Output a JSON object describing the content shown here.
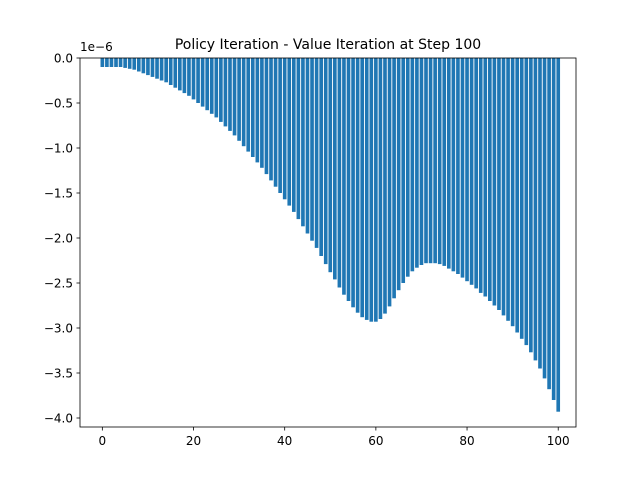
{
  "chart_data": {
    "type": "bar",
    "title": "Policy Iteration - Value Iteration at Step 100",
    "xlabel": "",
    "ylabel": "",
    "offset_label": "1e−6",
    "y_scale_exponent": -6,
    "bar_color": "#1f77b4",
    "grid": false,
    "xlim": [
      -4.9,
      103.9
    ],
    "ylim": [
      -4.1,
      0.0
    ],
    "xticks": [
      0,
      20,
      40,
      60,
      80,
      100
    ],
    "xtick_labels": [
      "0",
      "20",
      "40",
      "60",
      "80",
      "100"
    ],
    "yticks": [
      0.0,
      -0.5,
      -1.0,
      -1.5,
      -2.0,
      -2.5,
      -3.0,
      -3.5,
      -4.0
    ],
    "ytick_labels": [
      "0.0",
      "−0.5",
      "−1.0",
      "−1.5",
      "−2.0",
      "−2.5",
      "−3.0",
      "−3.5",
      "−4.0"
    ],
    "x_start": 0,
    "values": [
      -0.1,
      -0.1,
      -0.1,
      -0.1,
      -0.1,
      -0.11,
      -0.12,
      -0.13,
      -0.15,
      -0.17,
      -0.19,
      -0.21,
      -0.23,
      -0.25,
      -0.27,
      -0.3,
      -0.33,
      -0.36,
      -0.39,
      -0.42,
      -0.46,
      -0.5,
      -0.54,
      -0.58,
      -0.62,
      -0.66,
      -0.71,
      -0.76,
      -0.81,
      -0.86,
      -0.92,
      -0.98,
      -1.04,
      -1.1,
      -1.16,
      -1.22,
      -1.29,
      -1.36,
      -1.43,
      -1.5,
      -1.57,
      -1.64,
      -1.71,
      -1.79,
      -1.87,
      -1.95,
      -2.03,
      -2.11,
      -2.2,
      -2.29,
      -2.38,
      -2.46,
      -2.55,
      -2.63,
      -2.7,
      -2.77,
      -2.83,
      -2.88,
      -2.91,
      -2.93,
      -2.93,
      -2.9,
      -2.84,
      -2.76,
      -2.67,
      -2.58,
      -2.5,
      -2.43,
      -2.37,
      -2.33,
      -2.3,
      -2.28,
      -2.28,
      -2.28,
      -2.29,
      -2.31,
      -2.34,
      -2.37,
      -2.4,
      -2.44,
      -2.48,
      -2.52,
      -2.56,
      -2.61,
      -2.65,
      -2.7,
      -2.75,
      -2.8,
      -2.86,
      -2.92,
      -2.98,
      -3.05,
      -3.12,
      -3.19,
      -3.27,
      -3.36,
      -3.45,
      -3.56,
      -3.68,
      -3.8,
      -3.93
    ]
  }
}
